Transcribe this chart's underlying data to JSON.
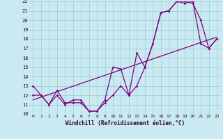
{
  "xlabel": "Windchill (Refroidissement éolien,°C)",
  "bg_color": "#c8eaf0",
  "grid_color": "#a0c8d8",
  "line_color": "#800080",
  "line_color2": "#9b009b",
  "xlim": [
    -0.5,
    23.5
  ],
  "ylim": [
    10,
    22
  ],
  "xticks": [
    0,
    1,
    2,
    3,
    4,
    5,
    6,
    7,
    8,
    9,
    10,
    11,
    12,
    13,
    14,
    15,
    16,
    17,
    18,
    19,
    20,
    21,
    22,
    23
  ],
  "yticks": [
    10,
    11,
    12,
    13,
    14,
    15,
    16,
    17,
    18,
    19,
    20,
    21,
    22
  ],
  "curve1_x": [
    0,
    1,
    2,
    3,
    4,
    5,
    6,
    7,
    8,
    9,
    10,
    11,
    12,
    13,
    14,
    15,
    16,
    17,
    18,
    19,
    20,
    21,
    22,
    23
  ],
  "curve1_y": [
    13.0,
    12.0,
    11.0,
    12.0,
    11.0,
    11.5,
    11.5,
    10.3,
    10.3,
    11.5,
    15.0,
    14.8,
    12.0,
    16.5,
    15.0,
    17.5,
    20.8,
    21.0,
    22.0,
    22.0,
    21.8,
    20.0,
    17.0,
    18.0
  ],
  "curve2_x": [
    0,
    1,
    2,
    3,
    4,
    5,
    6,
    7,
    8,
    9,
    10,
    11,
    12,
    13,
    14,
    15,
    16,
    17,
    18,
    19,
    20,
    21,
    22,
    23
  ],
  "curve2_y": [
    12.0,
    12.0,
    11.0,
    12.5,
    11.2,
    11.2,
    11.2,
    10.3,
    10.3,
    11.2,
    12.0,
    13.0,
    12.0,
    13.0,
    15.0,
    17.5,
    20.8,
    21.0,
    22.0,
    21.8,
    22.0,
    17.5,
    17.0,
    18.0
  ],
  "trend_x": [
    0,
    23
  ],
  "trend_y": [
    11.5,
    18.2
  ]
}
